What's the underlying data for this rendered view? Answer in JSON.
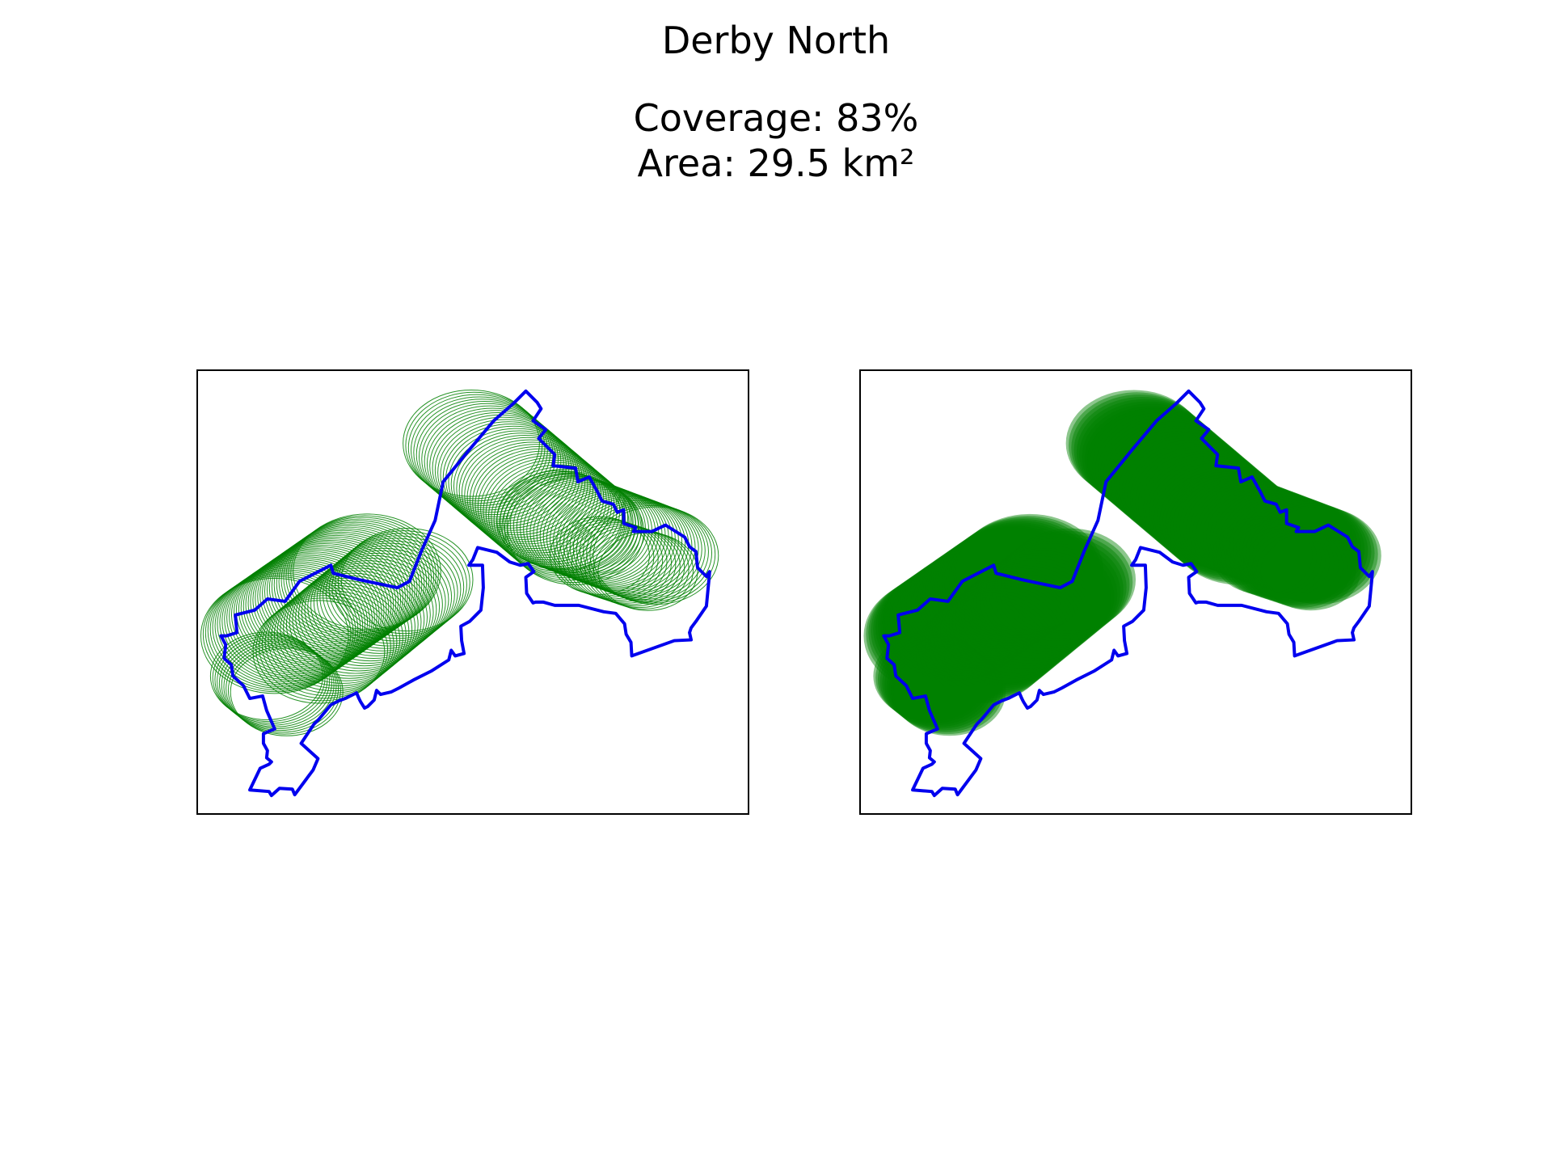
{
  "figure": {
    "title": "Derby North",
    "coverage_label": "Coverage: 83%",
    "area_label": "Area: 29.5 km²"
  },
  "chart_data": {
    "type": "map",
    "title": "Derby North",
    "stats": {
      "coverage_percent": 83,
      "area_km2": 29.5
    },
    "panels": [
      {
        "id": "left",
        "style": "circle outlines"
      },
      {
        "id": "right",
        "style": "filled circles"
      }
    ],
    "colors": {
      "boundary": "#0000ee",
      "coverage": "#008000",
      "frame": "#000000"
    },
    "axes": {
      "ticks": false,
      "grid": false
    }
  }
}
